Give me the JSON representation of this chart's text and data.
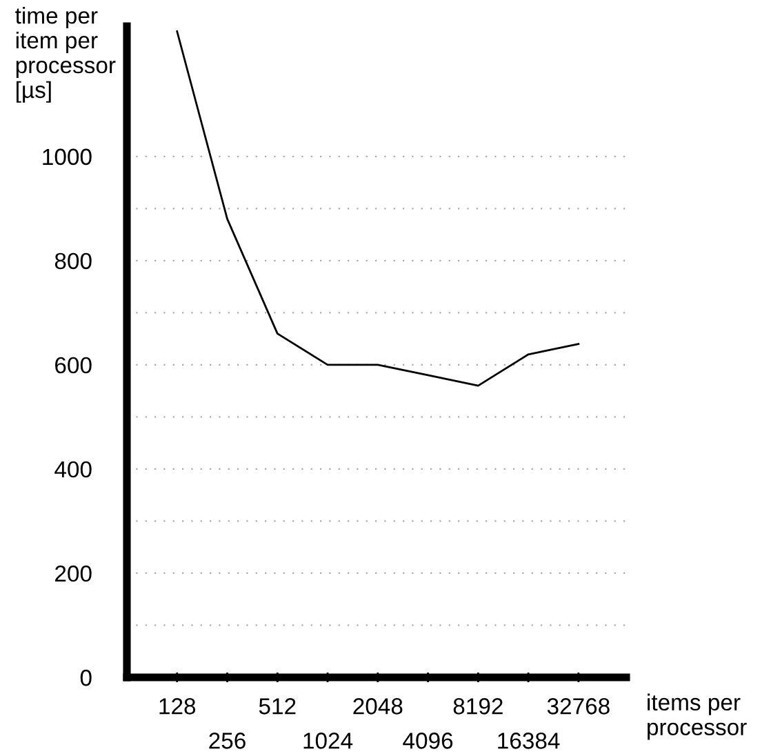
{
  "chart_data": {
    "type": "line",
    "xlabel": "items per processor",
    "ylabel": "time per item per processor [µs]",
    "categories": [
      "128",
      "256",
      "512",
      "1024",
      "2048",
      "4096",
      "8192",
      "16384",
      "32768"
    ],
    "series": [
      {
        "color": "#000000",
        "values": [
          1240,
          880,
          660,
          600,
          600,
          580,
          560,
          620,
          640
        ]
      }
    ],
    "ylim": [
      0,
      1250
    ],
    "yticks": [
      0,
      {
        "value": 100,
        "label": null
      },
      200,
      {
        "value": 300,
        "label": null
      },
      400,
      {
        "value": 500,
        "label": null
      },
      600,
      {
        "value": 700,
        "label": null
      },
      800,
      {
        "value": 900,
        "label": null
      },
      1000
    ],
    "grid": "y",
    "marker": "none",
    "line_style": "solid"
  }
}
